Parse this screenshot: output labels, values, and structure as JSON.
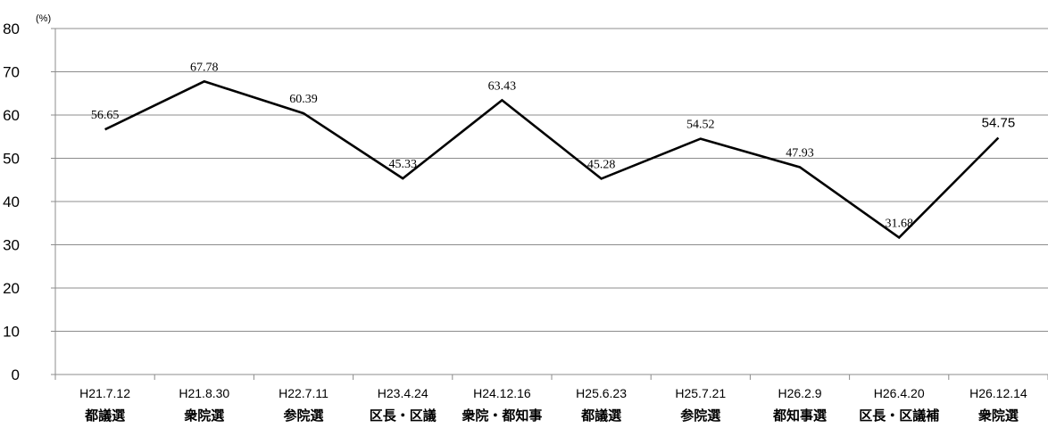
{
  "chart_data": {
    "type": "line",
    "ylabel": "(%)",
    "ylim": [
      0,
      80
    ],
    "y_ticks": [
      "0",
      "10",
      "20",
      "30",
      "40",
      "50",
      "60",
      "70",
      "80"
    ],
    "grid": true,
    "categories": [
      {
        "date": "H21.7.12",
        "name": "都議選"
      },
      {
        "date": "H21.8.30",
        "name": "衆院選"
      },
      {
        "date": "H22.7.11",
        "name": "参院選"
      },
      {
        "date": "H23.4.24",
        "name": "区長・区議"
      },
      {
        "date": "H24.12.16",
        "name": "衆院・都知事"
      },
      {
        "date": "H25.6.23",
        "name": "都議選"
      },
      {
        "date": "H25.7.21",
        "name": "参院選"
      },
      {
        "date": "H26.2.9",
        "name": "都知事選"
      },
      {
        "date": "H26.4.20",
        "name": "区長・区議補"
      },
      {
        "date": "H26.12.14",
        "name": "衆院選"
      }
    ],
    "values": [
      56.65,
      67.78,
      60.39,
      45.33,
      63.43,
      45.28,
      54.52,
      47.93,
      31.68,
      54.75
    ],
    "value_labels": [
      "56.65",
      "67.78",
      "60.39",
      "45.33",
      "63.43",
      "45.28",
      "54.52",
      "47.93",
      "31.68",
      "54.75"
    ],
    "line_color": "#000000",
    "grid_color": "#8c8c8c"
  }
}
